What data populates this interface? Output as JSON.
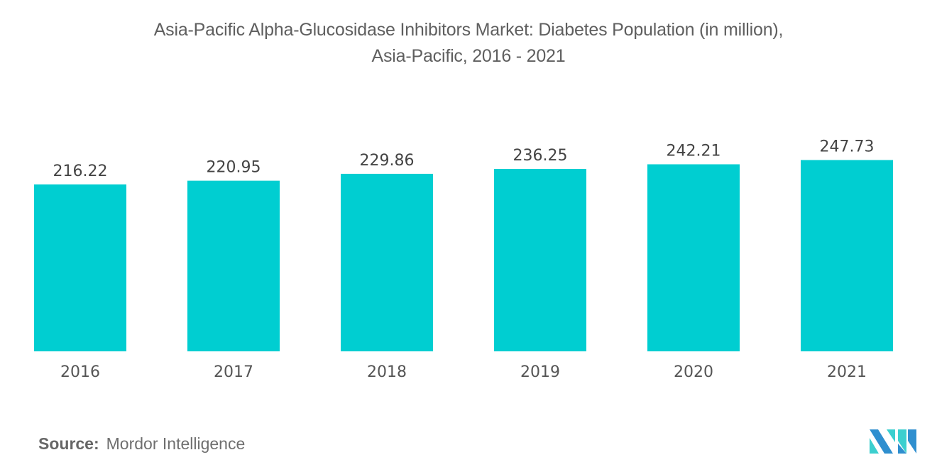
{
  "chart_data": {
    "type": "bar",
    "title": "Asia-Pacific Alpha-Glucosidase Inhibitors Market: Diabetes Population (in million), Asia-Pacific, 2016 - 2021",
    "title_lines": [
      "Asia-Pacific Alpha-Glucosidase Inhibitors Market: Diabetes Population (in million),",
      "Asia-Pacific, 2016 - 2021"
    ],
    "categories": [
      "2016",
      "2017",
      "2018",
      "2019",
      "2020",
      "2021"
    ],
    "values": [
      216.22,
      220.95,
      229.86,
      236.25,
      242.21,
      247.73
    ],
    "data_labels": [
      "216.22",
      "220.95",
      "229.86",
      "236.25",
      "242.21",
      "247.73"
    ],
    "xlabel": "",
    "ylabel": "",
    "ylim": [
      0,
      250
    ],
    "grid": false,
    "legend": "none",
    "bar_color": "#00ced1"
  },
  "source": {
    "label": "Source:",
    "text": "Mordor Intelligence"
  },
  "logo": {
    "name": "Mordor Intelligence logo",
    "colors": [
      "#2f8fcf",
      "#3ccfcf"
    ]
  }
}
